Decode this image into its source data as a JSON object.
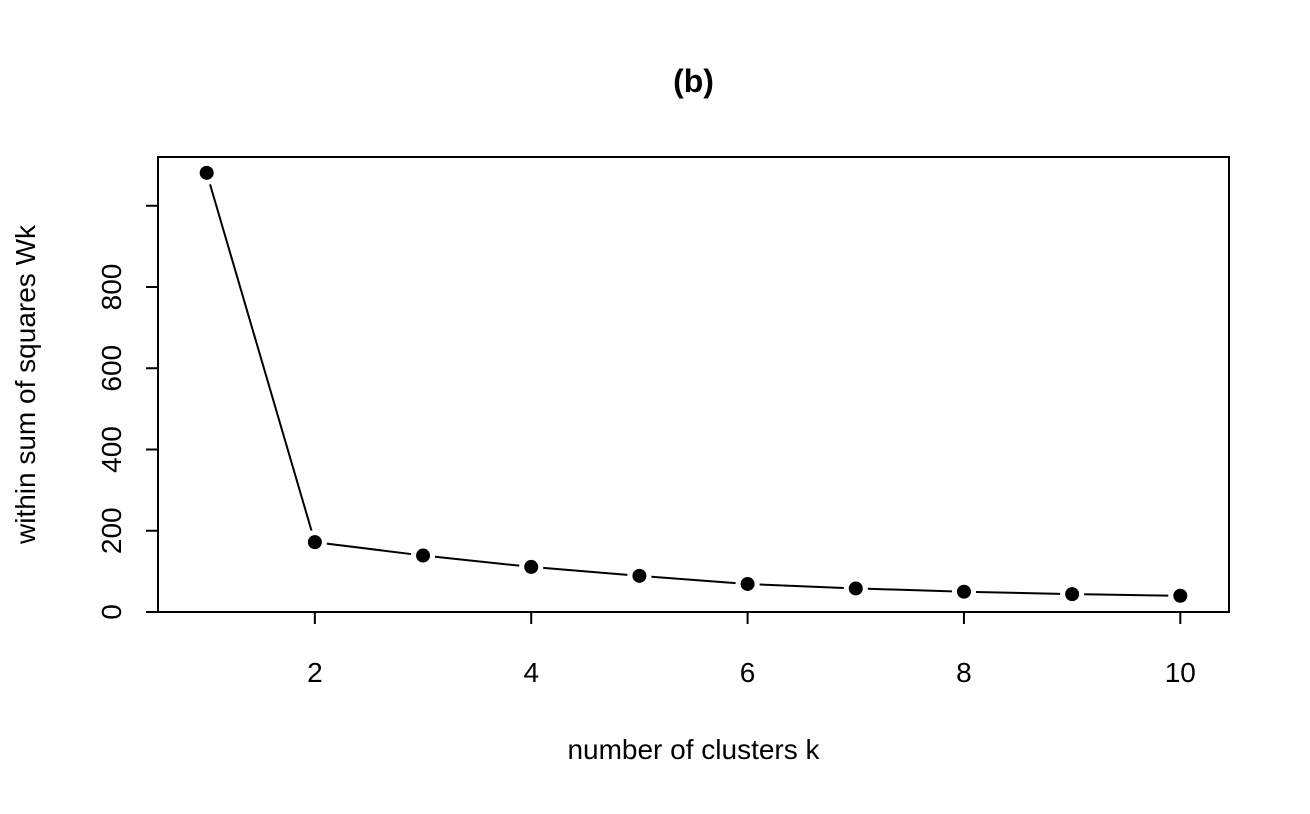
{
  "chart_data": {
    "type": "line",
    "title": "(b)",
    "xlabel": "number of clusters k",
    "ylabel": "within sum of squares Wk",
    "x": [
      1,
      2,
      3,
      4,
      5,
      6,
      7,
      8,
      9,
      10
    ],
    "series": [
      {
        "values": [
          1081,
          172,
          139,
          111,
          89,
          69,
          58,
          50,
          44,
          40
        ]
      }
    ],
    "xlim": [
      0.55,
      10.45
    ],
    "ylim": [
      0,
      1120
    ],
    "xticks": [
      "2",
      "4",
      "6",
      "8",
      "10"
    ],
    "yticks": [
      "0",
      "200",
      "400",
      "600",
      "800"
    ],
    "marker": "filled-circle",
    "line_style": "lines-with-gaps-at-points",
    "grid": false,
    "colors": {
      "line": "#000000",
      "points": "#000000",
      "frame": "#000000",
      "background": "#ffffff"
    }
  }
}
